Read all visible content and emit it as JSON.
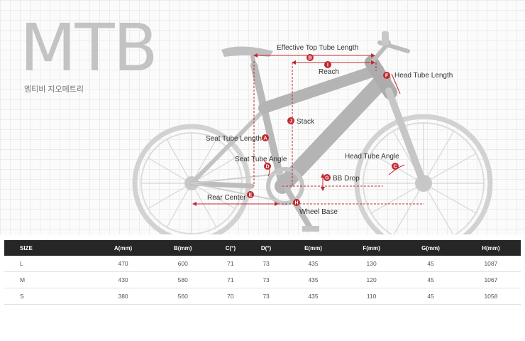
{
  "header": {
    "title": "MTB",
    "subtitle": "엠티비 지오메트리"
  },
  "labels": {
    "top_tube": "Effective Top Tube Length",
    "reach": "Reach",
    "head_tube": "Head Tube Length",
    "stack": "Stack",
    "seat_tube": "Seat Tube Length",
    "seat_angle": "Seat Tube Angle",
    "head_angle": "Head Tube Angle",
    "bb_drop": "BB Drop",
    "rear_center": "Rear Center",
    "wheel_base": "Wheel Base"
  },
  "badges": {
    "A": "A",
    "B": "B",
    "C": "C",
    "D": "D",
    "E": "E",
    "F": "F",
    "G": "G",
    "H": "H",
    "I": "I",
    "J": "J"
  },
  "colors": {
    "accent": "#c0292f",
    "frame": "#b4b4b4",
    "table_header": "#262626"
  },
  "table": {
    "headers": [
      "SIZE",
      "A(mm)",
      "B(mm)",
      "C(°)",
      "D(°)",
      "E(mm)",
      "F(mm)",
      "G(mm)",
      "H(mm)"
    ],
    "rows": [
      [
        "L",
        "470",
        "600",
        "71",
        "73",
        "435",
        "130",
        "45",
        "1087"
      ],
      [
        "M",
        "430",
        "580",
        "71",
        "73",
        "435",
        "120",
        "45",
        "1067"
      ],
      [
        "S",
        "380",
        "560",
        "70",
        "73",
        "435",
        "110",
        "45",
        "1058"
      ]
    ]
  }
}
